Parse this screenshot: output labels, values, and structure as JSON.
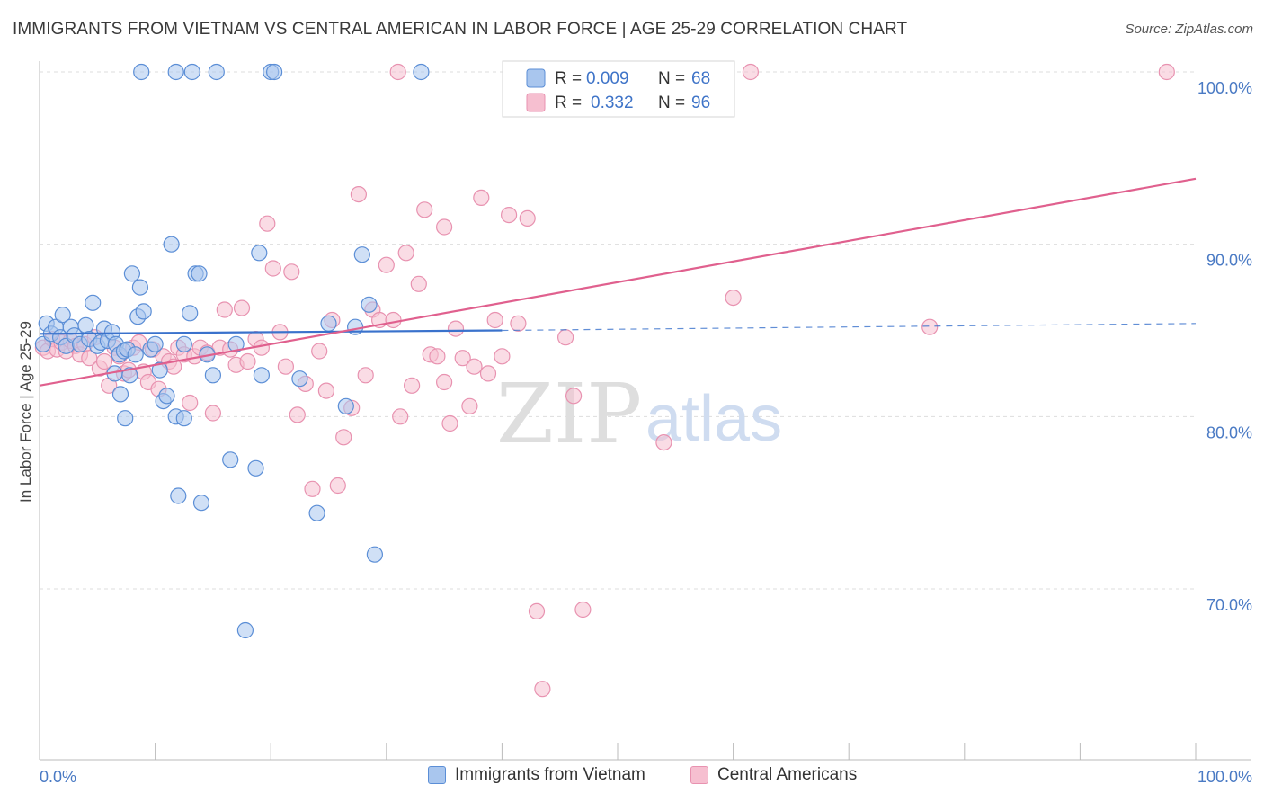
{
  "title": "IMMIGRANTS FROM VIETNAM VS CENTRAL AMERICAN IN LABOR FORCE | AGE 25-29 CORRELATION CHART",
  "source": "Source: ZipAtlas.com",
  "watermark": {
    "zip": "ZIP",
    "atlas": "atlas"
  },
  "legend_top": [
    {
      "r_label": "R = ",
      "r_value": "0.009",
      "n_label": "N = ",
      "n_value": "68"
    },
    {
      "r_label": "R = ",
      "r_value": "0.332",
      "n_label": "N = ",
      "n_value": "96"
    }
  ],
  "colors": {
    "blue_fill": "#a9c6ee",
    "blue_stroke": "#5b8ed6",
    "blue_line": "#3a72cc",
    "pink_fill": "#f6bfd0",
    "pink_stroke": "#e892b0",
    "pink_line": "#e0608e",
    "tick_label": "#4a7ac4",
    "grid": "#dddddd"
  },
  "chart_data": {
    "type": "scatter",
    "title": "IMMIGRANTS FROM VIETNAM VS CENTRAL AMERICAN IN LABOR FORCE | AGE 25-29 CORRELATION CHART",
    "xlabel": "",
    "ylabel": "In Labor Force | Age 25-29",
    "xlim": [
      0,
      100
    ],
    "ylim": [
      60,
      101.5
    ],
    "x_tick_labels": [
      "0.0%",
      "100.0%"
    ],
    "y_ticks": [
      70,
      80,
      90,
      100
    ],
    "y_tick_labels": [
      "70.0%",
      "80.0%",
      "90.0%",
      "100.0%"
    ],
    "grid": true,
    "legend_position": "top-center",
    "series": [
      {
        "name": "Immigrants from Vietnam",
        "color": "#a9c6ee",
        "trend": {
          "x": [
            0,
            40
          ],
          "y": [
            84.8,
            85.0
          ],
          "extended_to_x": 100,
          "extended_y": 85.4
        },
        "points": [
          [
            0.3,
            84.2
          ],
          [
            0.6,
            85.4
          ],
          [
            1,
            84.8
          ],
          [
            1.4,
            85.2
          ],
          [
            1.8,
            84.6
          ],
          [
            2,
            85.9
          ],
          [
            2.3,
            84.1
          ],
          [
            2.7,
            85.2
          ],
          [
            3,
            84.7
          ],
          [
            3.5,
            84.2
          ],
          [
            4,
            85.3
          ],
          [
            4.3,
            84.5
          ],
          [
            4.6,
            86.6
          ],
          [
            5,
            84.1
          ],
          [
            5.3,
            84.3
          ],
          [
            5.6,
            85.1
          ],
          [
            5.9,
            84.4
          ],
          [
            6.3,
            84.9
          ],
          [
            6.6,
            84.2
          ],
          [
            6.9,
            83.6
          ],
          [
            7.3,
            83.8
          ],
          [
            6.5,
            82.5
          ],
          [
            7,
            81.3
          ],
          [
            7.4,
            79.9
          ],
          [
            7.8,
            82.4
          ],
          [
            7.6,
            83.9
          ],
          [
            8,
            88.3
          ],
          [
            8.3,
            83.6
          ],
          [
            8.5,
            85.8
          ],
          [
            8.7,
            87.5
          ],
          [
            9,
            86.1
          ],
          [
            9.6,
            83.9
          ],
          [
            10,
            84.2
          ],
          [
            10.4,
            82.7
          ],
          [
            10.7,
            80.9
          ],
          [
            11,
            81.2
          ],
          [
            11.4,
            90.0
          ],
          [
            11.8,
            80.0
          ],
          [
            12.5,
            79.9
          ],
          [
            12,
            75.4
          ],
          [
            13,
            86.0
          ],
          [
            13.5,
            88.3
          ],
          [
            13.8,
            88.3
          ],
          [
            14,
            75.0
          ],
          [
            14.5,
            83.6
          ],
          [
            15,
            82.4
          ],
          [
            16.5,
            77.5
          ],
          [
            17,
            84.2
          ],
          [
            18.7,
            77.0
          ],
          [
            19.2,
            82.4
          ],
          [
            19,
            89.5
          ],
          [
            20,
            100
          ],
          [
            20.3,
            100
          ],
          [
            22.5,
            82.2
          ],
          [
            24,
            74.4
          ],
          [
            25,
            85.4
          ],
          [
            26.5,
            80.6
          ],
          [
            27.3,
            85.2
          ],
          [
            27.9,
            89.4
          ],
          [
            28.5,
            86.5
          ],
          [
            29,
            72.0
          ],
          [
            33,
            100
          ],
          [
            8.8,
            100
          ],
          [
            11.8,
            100
          ],
          [
            13.2,
            100
          ],
          [
            15.3,
            100
          ],
          [
            17.8,
            67.6
          ],
          [
            12.5,
            84.2
          ]
        ]
      },
      {
        "name": "Central Americans",
        "color": "#f6bfd0",
        "trend": {
          "x": [
            0,
            100
          ],
          "y": [
            81.8,
            93.8
          ]
        },
        "points": [
          [
            0.3,
            84.0
          ],
          [
            0.7,
            83.8
          ],
          [
            1.1,
            84.5
          ],
          [
            1.5,
            83.9
          ],
          [
            1.9,
            84.3
          ],
          [
            2.3,
            83.8
          ],
          [
            2.7,
            84.4
          ],
          [
            3.1,
            84.1
          ],
          [
            3.5,
            83.6
          ],
          [
            3.9,
            84.2
          ],
          [
            4.3,
            83.4
          ],
          [
            4.8,
            84.6
          ],
          [
            5.2,
            82.8
          ],
          [
            5.6,
            83.2
          ],
          [
            6,
            81.8
          ],
          [
            6.5,
            84.0
          ],
          [
            6.9,
            83.5
          ],
          [
            7.3,
            82.5
          ],
          [
            7.7,
            82.7
          ],
          [
            8.1,
            84.0
          ],
          [
            8.6,
            84.3
          ],
          [
            9,
            82.6
          ],
          [
            9.4,
            82.0
          ],
          [
            9.8,
            83.9
          ],
          [
            10.3,
            81.6
          ],
          [
            10.7,
            83.5
          ],
          [
            11.2,
            83.2
          ],
          [
            11.6,
            82.9
          ],
          [
            12,
            84.0
          ],
          [
            12.5,
            83.6
          ],
          [
            13,
            80.8
          ],
          [
            13.4,
            83.5
          ],
          [
            13.9,
            84.0
          ],
          [
            14.5,
            83.7
          ],
          [
            15,
            80.2
          ],
          [
            15.6,
            84.0
          ],
          [
            16,
            86.2
          ],
          [
            16.5,
            83.9
          ],
          [
            17,
            83.0
          ],
          [
            17.5,
            86.3
          ],
          [
            18,
            83.2
          ],
          [
            18.7,
            84.5
          ],
          [
            19.2,
            84.0
          ],
          [
            19.7,
            91.2
          ],
          [
            20.2,
            88.6
          ],
          [
            20.8,
            84.9
          ],
          [
            21.3,
            82.9
          ],
          [
            21.8,
            88.4
          ],
          [
            22.3,
            80.1
          ],
          [
            23,
            81.9
          ],
          [
            23.6,
            75.8
          ],
          [
            24.2,
            83.8
          ],
          [
            24.8,
            81.5
          ],
          [
            25.3,
            85.6
          ],
          [
            25.8,
            76.0
          ],
          [
            26.3,
            78.8
          ],
          [
            27,
            80.5
          ],
          [
            27.6,
            92.9
          ],
          [
            28.2,
            82.4
          ],
          [
            28.8,
            86.2
          ],
          [
            29.4,
            85.6
          ],
          [
            30,
            88.8
          ],
          [
            30.6,
            85.6
          ],
          [
            31.2,
            80.0
          ],
          [
            31.7,
            89.5
          ],
          [
            32.2,
            81.8
          ],
          [
            32.8,
            87.7
          ],
          [
            33.3,
            92.0
          ],
          [
            33.8,
            83.6
          ],
          [
            34.4,
            83.5
          ],
          [
            35,
            82.0
          ],
          [
            35.5,
            79.6
          ],
          [
            36,
            85.1
          ],
          [
            36.6,
            83.4
          ],
          [
            37.2,
            80.6
          ],
          [
            37.6,
            82.9
          ],
          [
            38.2,
            92.7
          ],
          [
            38.8,
            82.5
          ],
          [
            39.4,
            85.6
          ],
          [
            40,
            83.5
          ],
          [
            40.6,
            91.7
          ],
          [
            41.4,
            85.4
          ],
          [
            42.2,
            91.5
          ],
          [
            43,
            68.7
          ],
          [
            43.5,
            64.2
          ],
          [
            45.5,
            84.6
          ],
          [
            46.2,
            81.2
          ],
          [
            47,
            68.8
          ],
          [
            54,
            78.5
          ],
          [
            60,
            86.9
          ],
          [
            61.5,
            100
          ],
          [
            77,
            85.2
          ],
          [
            97.5,
            100
          ],
          [
            31,
            100
          ],
          [
            41,
            100
          ],
          [
            35,
            91.0
          ]
        ]
      }
    ]
  },
  "legend_bottom": [
    {
      "label": "Immigrants from Vietnam"
    },
    {
      "label": "Central Americans"
    }
  ]
}
